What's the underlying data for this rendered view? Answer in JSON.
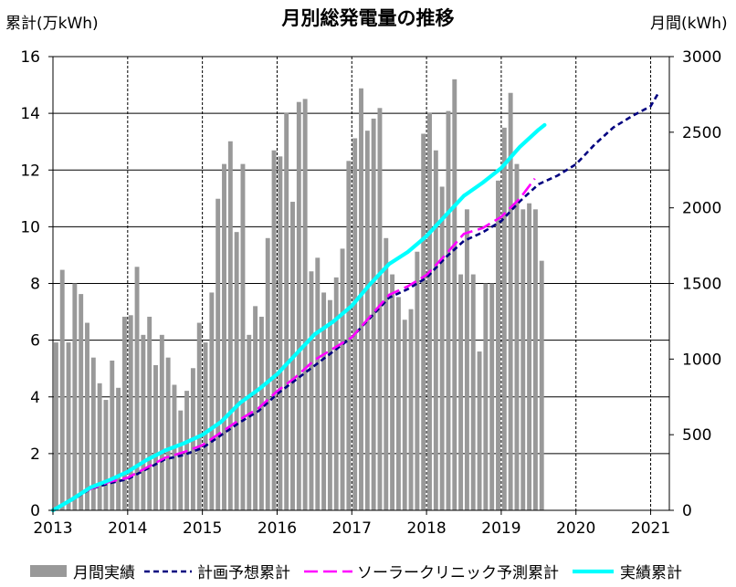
{
  "chart_data": {
    "type": "bar",
    "title": "月別総発電量の推移",
    "ylabel_left": "累計(万kWh)",
    "ylabel_right": "月間(kWh)",
    "xlim": [
      2013,
      2021.25
    ],
    "ylim_left": [
      0,
      16
    ],
    "ylim_right": [
      0,
      3000
    ],
    "x_ticks": [
      "2013",
      "2014",
      "2015",
      "2016",
      "2017",
      "2018",
      "2019",
      "2020",
      "2021"
    ],
    "y_ticks_left": [
      0,
      2,
      4,
      6,
      8,
      10,
      12,
      14,
      16
    ],
    "y_ticks_right": [
      0,
      500,
      1000,
      1500,
      2000,
      2500,
      3000
    ],
    "grid": true,
    "legend_position": "bottom",
    "bars": {
      "name": "月間実績",
      "axis": "right",
      "color": "#999999",
      "monthly_by_year": {
        "2013": [
          1110,
          1590,
          1110,
          1500,
          1430,
          1240,
          1010,
          840,
          730,
          990,
          810,
          1280
        ],
        "2014": [
          1290,
          1610,
          1160,
          1280,
          960,
          1160,
          1010,
          830,
          660,
          790,
          940,
          1240
        ],
        "2015": [
          1110,
          1440,
          2060,
          2290,
          2440,
          1840,
          2290,
          1160,
          1350,
          1280,
          1800,
          2380
        ],
        "2016": [
          2340,
          2630,
          2040,
          2700,
          2720,
          1580,
          1670,
          1440,
          1390,
          1540,
          1730,
          2310
        ],
        "2017": [
          2460,
          2790,
          2510,
          2590,
          2660,
          1800,
          1560,
          1410,
          1260,
          1330,
          1710,
          2490
        ],
        "2018": [
          2630,
          2380,
          2140,
          2640,
          2850,
          1560,
          1990,
          1560,
          1050,
          1500,
          1500,
          2180
        ],
        "2019": [
          2530,
          2760,
          2290,
          1990,
          2030,
          1990,
          1650
        ]
      }
    },
    "lines": [
      {
        "name": "計画予想累計",
        "axis": "left",
        "dashed": true,
        "color": "#000080",
        "x": [
          2013,
          2013.25,
          2013.5,
          2013.75,
          2014,
          2014.25,
          2014.5,
          2014.75,
          2015,
          2015.25,
          2015.5,
          2015.75,
          2016,
          2016.25,
          2016.5,
          2016.75,
          2017,
          2017.25,
          2017.5,
          2017.75,
          2018,
          2018.25,
          2018.5,
          2018.75,
          2019,
          2019.25,
          2019.5,
          2019.75,
          2020,
          2020.25,
          2020.5,
          2020.75,
          2021,
          2021.1
        ],
        "y": [
          0,
          0.35,
          0.75,
          0.95,
          1.1,
          1.45,
          1.8,
          1.95,
          2.2,
          2.65,
          3.1,
          3.5,
          4.1,
          4.6,
          5.1,
          5.6,
          6.1,
          6.8,
          7.5,
          7.8,
          8.2,
          8.9,
          9.5,
          9.8,
          10.2,
          10.9,
          11.5,
          11.8,
          12.2,
          12.9,
          13.5,
          13.9,
          14.25,
          14.7
        ]
      },
      {
        "name": "ソーラークリニック予測累計",
        "axis": "left",
        "dashed": true,
        "color": "#ff00ff",
        "x": [
          2013,
          2013.25,
          2013.5,
          2013.75,
          2014,
          2014.25,
          2014.5,
          2014.75,
          2015,
          2015.25,
          2015.5,
          2015.75,
          2016,
          2016.25,
          2016.5,
          2016.75,
          2017,
          2017.25,
          2017.5,
          2017.75,
          2018,
          2018.25,
          2018.5,
          2018.75,
          2019,
          2019.25,
          2019.45
        ],
        "y": [
          0,
          0.4,
          0.75,
          1.0,
          1.15,
          1.5,
          1.85,
          2.05,
          2.3,
          2.75,
          3.2,
          3.6,
          4.2,
          4.7,
          5.3,
          5.7,
          6.1,
          6.85,
          7.6,
          7.9,
          8.3,
          9.0,
          9.75,
          9.95,
          10.35,
          11.0,
          11.7
        ]
      },
      {
        "name": "実績累計",
        "axis": "left",
        "dashed": false,
        "color": "#00ffff",
        "x": [
          2013,
          2013.25,
          2013.5,
          2013.75,
          2014,
          2014.25,
          2014.5,
          2014.75,
          2015,
          2015.25,
          2015.5,
          2015.75,
          2016,
          2016.25,
          2016.5,
          2016.75,
          2017,
          2017.25,
          2017.5,
          2017.75,
          2018,
          2018.25,
          2018.5,
          2018.75,
          2019,
          2019.25,
          2019.5,
          2019.58
        ],
        "y": [
          0,
          0.38,
          0.8,
          1.06,
          1.36,
          1.77,
          2.11,
          2.36,
          2.66,
          3.12,
          3.78,
          4.26,
          4.8,
          5.5,
          6.2,
          6.65,
          7.21,
          7.99,
          8.69,
          9.11,
          9.67,
          10.38,
          11.09,
          11.55,
          12.07,
          12.82,
          13.42,
          13.59
        ]
      }
    ]
  }
}
